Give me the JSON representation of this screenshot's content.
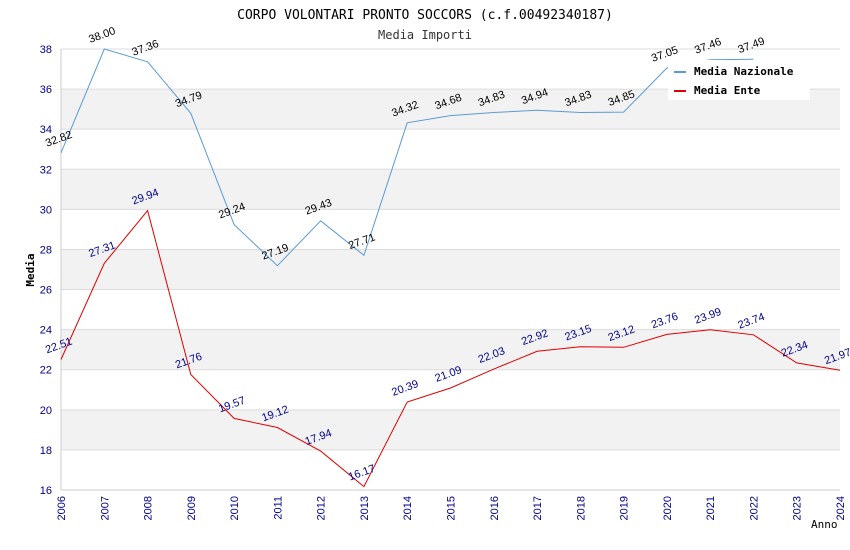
{
  "chart_data": {
    "type": "line",
    "title": "CORPO VOLONTARI PRONTO SOCCORS (c.f.00492340187)",
    "subtitle": "Media Importi",
    "xlabel": "Anno",
    "ylabel": "Media",
    "x": [
      "2006",
      "2007",
      "2008",
      "2009",
      "2010",
      "2011",
      "2012",
      "2013",
      "2014",
      "2015",
      "2016",
      "2017",
      "2018",
      "2019",
      "2020",
      "2021",
      "2022",
      "2023",
      "2024"
    ],
    "ylim": [
      16,
      38
    ],
    "yticks": [
      "16",
      "18",
      "20",
      "22",
      "24",
      "26",
      "28",
      "30",
      "32",
      "34",
      "36",
      "38"
    ],
    "grid": true,
    "legend_position": "top-right",
    "series": [
      {
        "name": "Media Nazionale",
        "color": "#5b9bd5",
        "values": [
          32.82,
          38.0,
          37.36,
          34.79,
          29.24,
          27.19,
          29.43,
          27.71,
          34.32,
          34.68,
          34.83,
          34.94,
          34.83,
          34.85,
          37.05,
          37.46,
          37.49,
          null,
          null
        ],
        "labels": [
          "32.82",
          "38.00",
          "37.36",
          "34.79",
          "29.24",
          "27.19",
          "29.43",
          "27.71",
          "34.32",
          "34.68",
          "34.83",
          "34.94",
          "34.83",
          "34.85",
          "37.05",
          "37.46",
          "37.49",
          "",
          ""
        ]
      },
      {
        "name": "Media Ente",
        "color": "#e00000",
        "values": [
          22.51,
          27.31,
          29.94,
          21.76,
          19.57,
          19.12,
          17.94,
          16.17,
          20.39,
          21.09,
          22.03,
          22.92,
          23.15,
          23.12,
          23.76,
          23.99,
          23.74,
          22.34,
          21.97
        ],
        "labels": [
          "22.51",
          "27.31",
          "29.94",
          "21.76",
          "19.57",
          "19.12",
          "17.94",
          "16.17",
          "20.39",
          "21.09",
          "22.03",
          "22.92",
          "23.15",
          "23.12",
          "23.76",
          "23.99",
          "23.74",
          "22.34",
          "21.97"
        ]
      }
    ]
  }
}
